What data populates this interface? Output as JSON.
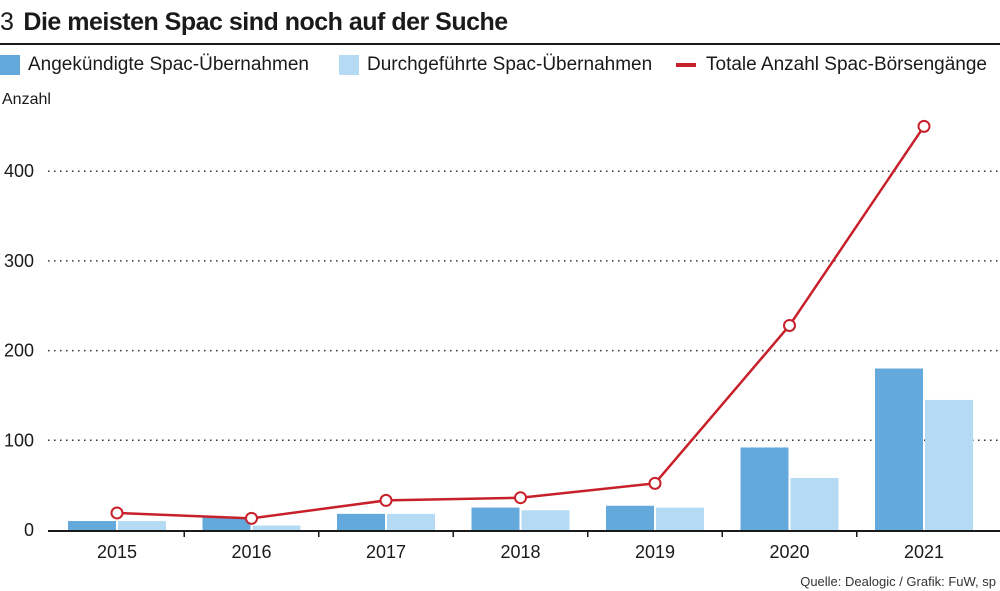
{
  "figure_number": "3",
  "title": "Die meisten Spac sind noch auf der Suche",
  "source": "Quelle: Dealogic / Grafik: FuW, sp",
  "colors": {
    "announced": "#64a9dc",
    "completed": "#b5dbf4",
    "line": "#c8202a",
    "text": "#1a1a1a"
  },
  "legend": [
    {
      "label": "Angekündigte Spac-Übernahmen",
      "kind": "box",
      "color": "#64a9dc"
    },
    {
      "label": "Durchgeführte Spac-Übernahmen",
      "kind": "box",
      "color": "#b5dbf4"
    },
    {
      "label": "Totale Anzahl Spac-Börsengänge",
      "kind": "line",
      "color": "#c8202a"
    }
  ],
  "chart_data": {
    "type": "bar",
    "title": "Die meisten Spac sind noch auf der Suche",
    "ylabel": "Anzahl",
    "xlabel": "",
    "ylim": [
      0,
      450
    ],
    "yticks": [
      0,
      100,
      200,
      300,
      400
    ],
    "grid": "horizontal-dotted",
    "categories": [
      "2015",
      "2016",
      "2017",
      "2018",
      "2019",
      "2020",
      "2021"
    ],
    "series": [
      {
        "name": "Angekündigte Spac-Übernahmen",
        "type": "bar",
        "color": "#64a9dc",
        "values": [
          10,
          14,
          18,
          25,
          27,
          92,
          180
        ]
      },
      {
        "name": "Durchgeführte Spac-Übernahmen",
        "type": "bar",
        "color": "#b5dbf4",
        "values": [
          10,
          5,
          18,
          22,
          25,
          58,
          145
        ]
      },
      {
        "name": "Totale Anzahl Spac-Börsengänge",
        "type": "line",
        "color": "#c8202a",
        "values": [
          19,
          13,
          33,
          36,
          52,
          228,
          450
        ]
      }
    ]
  }
}
